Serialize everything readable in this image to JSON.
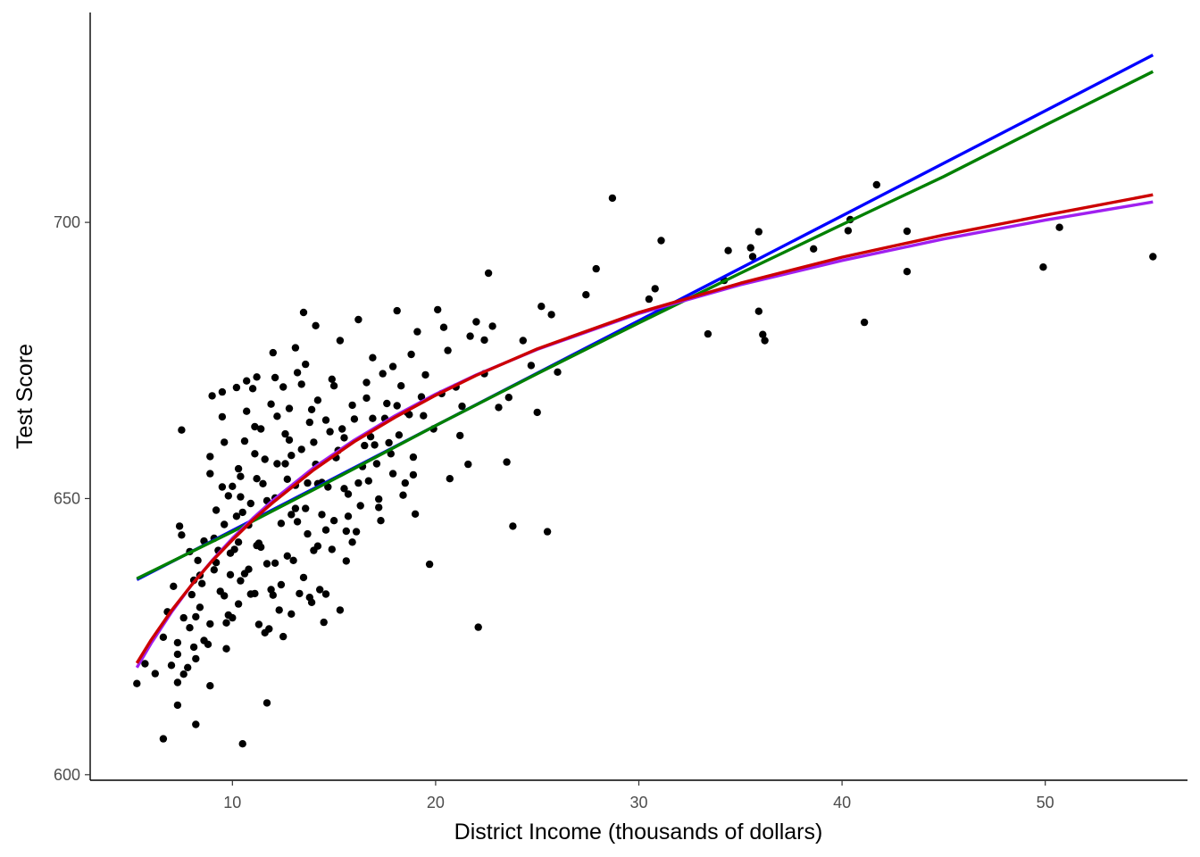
{
  "chart_data": {
    "type": "scatter",
    "title": "",
    "xlabel": "District Income (thousands of dollars)",
    "ylabel": "Test Score",
    "xlim": [
      3,
      57
    ],
    "ylim": [
      599,
      738
    ],
    "x_ticks": [
      10,
      20,
      30,
      40,
      50
    ],
    "y_ticks": [
      600,
      650,
      700
    ],
    "x_tick_labels": [
      "10",
      "20",
      "30",
      "40",
      "50"
    ],
    "y_tick_labels": [
      "600",
      "650",
      "700"
    ],
    "grid": false,
    "legend": "none",
    "point_color": "#000000",
    "points": [
      [
        5.3,
        616.5
      ],
      [
        5.7,
        620.1
      ],
      [
        6.2,
        618.3
      ],
      [
        6.6,
        606.5
      ],
      [
        6.6,
        624.9
      ],
      [
        6.8,
        629.5
      ],
      [
        7.0,
        619.8
      ],
      [
        7.1,
        634.1
      ],
      [
        7.3,
        616.7
      ],
      [
        7.3,
        612.6
      ],
      [
        7.3,
        621.8
      ],
      [
        7.3,
        623.9
      ],
      [
        7.4,
        645.0
      ],
      [
        7.5,
        643.4
      ],
      [
        7.5,
        662.4
      ],
      [
        7.6,
        618.2
      ],
      [
        7.6,
        628.4
      ],
      [
        7.8,
        619.4
      ],
      [
        7.9,
        626.6
      ],
      [
        8.0,
        632.6
      ],
      [
        8.1,
        623.1
      ],
      [
        8.2,
        621.0
      ],
      [
        8.2,
        609.1
      ],
      [
        8.2,
        628.6
      ],
      [
        8.3,
        638.8
      ],
      [
        8.4,
        636.1
      ],
      [
        8.5,
        634.6
      ],
      [
        8.6,
        624.3
      ],
      [
        8.8,
        623.6
      ],
      [
        8.9,
        616.1
      ],
      [
        8.9,
        627.3
      ],
      [
        8.9,
        654.5
      ],
      [
        9.0,
        668.6
      ],
      [
        9.1,
        642.8
      ],
      [
        9.2,
        638.4
      ],
      [
        9.3,
        640.6
      ],
      [
        9.5,
        669.3
      ],
      [
        9.5,
        652.1
      ],
      [
        9.6,
        632.4
      ],
      [
        9.6,
        645.3
      ],
      [
        9.7,
        622.8
      ],
      [
        9.7,
        627.5
      ],
      [
        9.8,
        650.5
      ],
      [
        9.9,
        636.2
      ],
      [
        10.0,
        652.2
      ],
      [
        10.0,
        628.4
      ],
      [
        10.1,
        640.8
      ],
      [
        10.2,
        646.8
      ],
      [
        10.3,
        642.1
      ],
      [
        10.3,
        630.9
      ],
      [
        10.4,
        654.0
      ],
      [
        10.4,
        635.1
      ],
      [
        10.5,
        605.6
      ],
      [
        10.5,
        647.5
      ],
      [
        10.6,
        660.4
      ],
      [
        10.7,
        671.3
      ],
      [
        10.8,
        645.2
      ],
      [
        10.8,
        637.2
      ],
      [
        10.9,
        649.1
      ],
      [
        11.0,
        669.9
      ],
      [
        11.1,
        632.8
      ],
      [
        11.1,
        658.1
      ],
      [
        11.2,
        641.5
      ],
      [
        11.2,
        653.6
      ],
      [
        11.3,
        641.9
      ],
      [
        11.4,
        662.6
      ],
      [
        11.5,
        652.7
      ],
      [
        11.6,
        625.7
      ],
      [
        11.7,
        638.2
      ],
      [
        11.7,
        613.0
      ],
      [
        11.8,
        626.4
      ],
      [
        11.9,
        633.5
      ],
      [
        12.0,
        676.4
      ],
      [
        12.1,
        650.1
      ],
      [
        12.1,
        638.3
      ],
      [
        12.2,
        656.3
      ],
      [
        12.2,
        664.9
      ],
      [
        12.3,
        629.8
      ],
      [
        12.4,
        645.5
      ],
      [
        12.5,
        670.2
      ],
      [
        12.5,
        625.0
      ],
      [
        12.6,
        656.3
      ],
      [
        12.7,
        653.5
      ],
      [
        12.8,
        660.6
      ],
      [
        12.9,
        647.1
      ],
      [
        13.0,
        638.8
      ],
      [
        13.1,
        677.3
      ],
      [
        13.1,
        652.4
      ],
      [
        13.2,
        645.8
      ],
      [
        13.3,
        632.8
      ],
      [
        13.4,
        670.7
      ],
      [
        13.4,
        658.9
      ],
      [
        13.5,
        683.7
      ],
      [
        13.6,
        648.2
      ],
      [
        13.6,
        674.3
      ],
      [
        13.7,
        652.8
      ],
      [
        13.8,
        632.1
      ],
      [
        13.9,
        666.1
      ],
      [
        14.0,
        640.6
      ],
      [
        14.1,
        681.3
      ],
      [
        14.2,
        652.7
      ],
      [
        14.3,
        633.5
      ],
      [
        14.4,
        652.9
      ],
      [
        14.5,
        627.6
      ],
      [
        14.6,
        644.3
      ],
      [
        14.7,
        652.1
      ],
      [
        14.8,
        662.1
      ],
      [
        14.9,
        671.6
      ],
      [
        15.0,
        646.0
      ],
      [
        15.1,
        657.4
      ],
      [
        15.3,
        678.6
      ],
      [
        15.4,
        662.6
      ],
      [
        15.5,
        651.8
      ],
      [
        15.6,
        644.1
      ],
      [
        15.7,
        650.8
      ],
      [
        15.9,
        642.1
      ],
      [
        16.0,
        664.4
      ],
      [
        16.2,
        682.4
      ],
      [
        16.3,
        648.7
      ],
      [
        16.5,
        659.6
      ],
      [
        16.6,
        668.2
      ],
      [
        16.7,
        653.2
      ],
      [
        16.9,
        675.5
      ],
      [
        17.1,
        656.3
      ],
      [
        17.2,
        649.9
      ],
      [
        17.4,
        672.6
      ],
      [
        17.5,
        664.5
      ],
      [
        17.7,
        660.1
      ],
      [
        17.9,
        654.5
      ],
      [
        18.1,
        684.0
      ],
      [
        18.3,
        670.4
      ],
      [
        18.5,
        652.8
      ],
      [
        18.7,
        665.2
      ],
      [
        18.9,
        657.5
      ],
      [
        19.1,
        680.2
      ],
      [
        19.4,
        665.0
      ],
      [
        19.7,
        638.1
      ],
      [
        19.9,
        662.6
      ],
      [
        20.1,
        684.2
      ],
      [
        20.4,
        681.0
      ],
      [
        20.7,
        653.6
      ],
      [
        21.0,
        670.2
      ],
      [
        21.2,
        661.4
      ],
      [
        21.6,
        656.2
      ],
      [
        22.0,
        682.0
      ],
      [
        22.1,
        626.7
      ],
      [
        22.4,
        678.7
      ],
      [
        22.6,
        690.8
      ],
      [
        22.8,
        681.2
      ],
      [
        23.1,
        666.5
      ],
      [
        23.5,
        656.6
      ],
      [
        23.8,
        645.0
      ],
      [
        24.3,
        678.6
      ],
      [
        25.0,
        665.6
      ],
      [
        25.2,
        684.8
      ],
      [
        25.5,
        644.0
      ],
      [
        25.7,
        683.3
      ],
      [
        26.0,
        672.9
      ],
      [
        27.4,
        686.9
      ],
      [
        27.9,
        691.6
      ],
      [
        28.7,
        704.4
      ],
      [
        30.5,
        686.1
      ],
      [
        30.8,
        688.0
      ],
      [
        31.1,
        696.7
      ],
      [
        33.4,
        679.8
      ],
      [
        34.2,
        689.5
      ],
      [
        34.4,
        694.9
      ],
      [
        35.5,
        695.4
      ],
      [
        35.6,
        693.8
      ],
      [
        35.9,
        683.9
      ],
      [
        35.9,
        698.3
      ],
      [
        36.1,
        679.7
      ],
      [
        36.2,
        678.6
      ],
      [
        38.6,
        695.2
      ],
      [
        40.3,
        698.5
      ],
      [
        40.4,
        700.5
      ],
      [
        41.1,
        681.9
      ],
      [
        41.7,
        706.8
      ],
      [
        43.2,
        698.4
      ],
      [
        43.2,
        691.1
      ],
      [
        49.9,
        691.9
      ],
      [
        50.7,
        699.1
      ],
      [
        55.3,
        693.8
      ],
      [
        9.6,
        660.2
      ],
      [
        10.7,
        665.8
      ],
      [
        11.9,
        667.1
      ],
      [
        12.8,
        666.3
      ],
      [
        13.8,
        663.8
      ],
      [
        14.6,
        664.2
      ],
      [
        15.9,
        666.9
      ],
      [
        16.8,
        661.2
      ],
      [
        17.6,
        667.2
      ],
      [
        18.6,
        665.6
      ],
      [
        10.3,
        655.4
      ],
      [
        11.6,
        657.1
      ],
      [
        12.9,
        657.8
      ],
      [
        14.1,
        656.2
      ],
      [
        15.2,
        658.7
      ],
      [
        16.4,
        655.8
      ],
      [
        17.8,
        658.1
      ],
      [
        18.9,
        654.3
      ],
      [
        9.2,
        647.9
      ],
      [
        10.4,
        650.3
      ],
      [
        11.7,
        649.6
      ],
      [
        13.1,
        648.2
      ],
      [
        14.4,
        647.1
      ],
      [
        15.7,
        646.8
      ],
      [
        17.2,
        648.4
      ],
      [
        19.0,
        647.2
      ],
      [
        8.6,
        642.3
      ],
      [
        9.9,
        640.1
      ],
      [
        11.4,
        641.2
      ],
      [
        12.7,
        639.6
      ],
      [
        14.2,
        641.4
      ],
      [
        15.6,
        638.7
      ],
      [
        8.1,
        635.2
      ],
      [
        9.4,
        633.2
      ],
      [
        10.9,
        632.7
      ],
      [
        12.4,
        634.4
      ],
      [
        13.9,
        631.2
      ],
      [
        15.3,
        629.8
      ],
      [
        7.9,
        640.4
      ],
      [
        9.1,
        637.1
      ],
      [
        10.6,
        636.4
      ],
      [
        12.0,
        632.5
      ],
      [
        13.5,
        635.7
      ],
      [
        16.2,
        652.8
      ],
      [
        17.0,
        659.7
      ],
      [
        18.2,
        661.5
      ],
      [
        19.3,
        668.4
      ],
      [
        20.3,
        669.0
      ],
      [
        21.3,
        666.7
      ],
      [
        22.4,
        672.6
      ],
      [
        23.6,
        668.3
      ],
      [
        24.7,
        674.1
      ],
      [
        16.6,
        671.0
      ],
      [
        17.9,
        673.9
      ],
      [
        18.8,
        676.1
      ],
      [
        20.6,
        676.8
      ],
      [
        21.7,
        679.4
      ],
      [
        15.0,
        670.4
      ],
      [
        14.2,
        667.8
      ],
      [
        13.2,
        672.8
      ],
      [
        12.1,
        671.9
      ],
      [
        11.2,
        672.0
      ],
      [
        10.2,
        670.1
      ],
      [
        9.5,
        664.8
      ],
      [
        8.9,
        657.6
      ],
      [
        11.1,
        663.0
      ],
      [
        12.6,
        661.7
      ],
      [
        14.0,
        660.2
      ],
      [
        15.5,
        661.0
      ],
      [
        16.9,
        664.5
      ],
      [
        18.1,
        666.8
      ],
      [
        19.5,
        672.4
      ],
      [
        13.7,
        643.6
      ],
      [
        14.9,
        640.8
      ],
      [
        16.1,
        644.0
      ],
      [
        17.3,
        646.0
      ],
      [
        18.4,
        650.6
      ],
      [
        8.4,
        630.3
      ],
      [
        9.8,
        628.9
      ],
      [
        11.3,
        627.2
      ],
      [
        12.9,
        629.1
      ],
      [
        14.6,
        632.7
      ]
    ],
    "series": [
      {
        "color": "#0000ff",
        "x": [
          5.3,
          10,
          15,
          20,
          25,
          30,
          35,
          40,
          45,
          50,
          55.3
        ],
        "y": [
          635.3,
          644.2,
          653.7,
          663.2,
          672.7,
          682.2,
          691.7,
          701.2,
          710.7,
          720.2,
          730.3
        ]
      },
      {
        "color": "#008000",
        "x": [
          5.3,
          10,
          15,
          20,
          25,
          30,
          35,
          40,
          45,
          50,
          55.3
        ],
        "y": [
          635.5,
          644.0,
          653.5,
          663.2,
          672.6,
          681.8,
          690.8,
          699.6,
          708.3,
          717.6,
          727.3
        ]
      },
      {
        "color": "#a020f0",
        "x": [
          5.3,
          6,
          7,
          8,
          9,
          10,
          11,
          12,
          14,
          16,
          18,
          20,
          22,
          25,
          30,
          35,
          40,
          45,
          50,
          55.3
        ],
        "y": [
          619.4,
          623.8,
          629.4,
          634.4,
          638.8,
          642.8,
          646.4,
          649.7,
          655.6,
          660.6,
          665.0,
          668.9,
          672.4,
          677.0,
          683.5,
          688.7,
          693.1,
          697.0,
          700.4,
          703.7
        ]
      },
      {
        "color": "#cc0000",
        "x": [
          5.3,
          6,
          7,
          8,
          9,
          10,
          11,
          12,
          14,
          16,
          18,
          20,
          22,
          25,
          30,
          35,
          40,
          45,
          50,
          55.3
        ],
        "y": [
          620.2,
          624.4,
          629.7,
          634.4,
          638.7,
          642.5,
          646.1,
          649.3,
          655.2,
          660.3,
          664.7,
          668.7,
          672.3,
          677.1,
          683.7,
          689.0,
          693.7,
          697.7,
          701.3,
          705.0
        ]
      }
    ]
  }
}
